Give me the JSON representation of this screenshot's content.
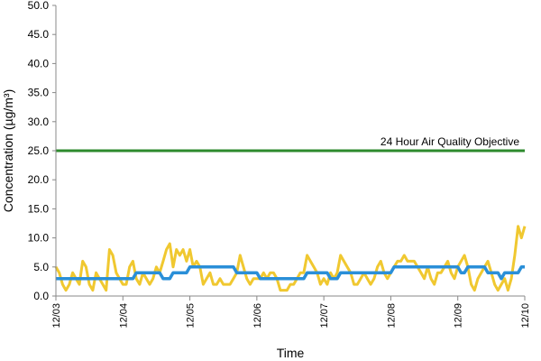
{
  "chart_data": {
    "type": "line",
    "xlabel": "Time",
    "ylabel": "Concentration (µg/m³)",
    "ylim": [
      0,
      50
    ],
    "yticks": [
      "0.0",
      "5.0",
      "10.0",
      "15.0",
      "20.0",
      "25.0",
      "30.0",
      "35.0",
      "40.0",
      "45.0",
      "50.0"
    ],
    "xticks": [
      "12/03",
      "12/04",
      "12/05",
      "12/06",
      "12/07",
      "12/08",
      "12/09",
      "12/10"
    ],
    "xlim_days": [
      0,
      7
    ],
    "grid": false,
    "annotation": "24 Hour Air Quality Objective",
    "series": [
      {
        "color": "#f0c830",
        "points": [
          [
            0.0,
            5
          ],
          [
            0.05,
            4
          ],
          [
            0.1,
            2
          ],
          [
            0.15,
            1
          ],
          [
            0.2,
            2
          ],
          [
            0.25,
            4
          ],
          [
            0.3,
            3
          ],
          [
            0.35,
            2
          ],
          [
            0.4,
            6
          ],
          [
            0.45,
            5
          ],
          [
            0.5,
            2
          ],
          [
            0.55,
            1
          ],
          [
            0.6,
            4
          ],
          [
            0.65,
            3
          ],
          [
            0.7,
            2
          ],
          [
            0.75,
            1
          ],
          [
            0.8,
            8
          ],
          [
            0.85,
            7
          ],
          [
            0.9,
            4
          ],
          [
            0.95,
            3
          ],
          [
            1.0,
            2
          ],
          [
            1.05,
            2
          ],
          [
            1.1,
            5
          ],
          [
            1.15,
            6
          ],
          [
            1.2,
            3
          ],
          [
            1.25,
            2
          ],
          [
            1.3,
            4
          ],
          [
            1.35,
            3
          ],
          [
            1.4,
            2
          ],
          [
            1.45,
            3
          ],
          [
            1.5,
            5
          ],
          [
            1.55,
            4
          ],
          [
            1.6,
            6
          ],
          [
            1.65,
            8
          ],
          [
            1.7,
            9
          ],
          [
            1.75,
            5
          ],
          [
            1.8,
            8
          ],
          [
            1.85,
            7
          ],
          [
            1.9,
            8
          ],
          [
            1.95,
            6
          ],
          [
            2.0,
            8
          ],
          [
            2.05,
            5
          ],
          [
            2.1,
            6
          ],
          [
            2.15,
            5
          ],
          [
            2.2,
            2
          ],
          [
            2.25,
            3
          ],
          [
            2.3,
            4
          ],
          [
            2.35,
            2
          ],
          [
            2.4,
            2
          ],
          [
            2.45,
            3
          ],
          [
            2.5,
            2
          ],
          [
            2.55,
            2
          ],
          [
            2.6,
            2
          ],
          [
            2.65,
            3
          ],
          [
            2.7,
            4
          ],
          [
            2.75,
            7
          ],
          [
            2.8,
            5
          ],
          [
            2.85,
            3
          ],
          [
            2.9,
            2
          ],
          [
            2.95,
            3
          ],
          [
            3.0,
            3
          ],
          [
            3.05,
            3
          ],
          [
            3.1,
            4
          ],
          [
            3.15,
            3
          ],
          [
            3.2,
            4
          ],
          [
            3.25,
            4
          ],
          [
            3.3,
            3
          ],
          [
            3.35,
            1
          ],
          [
            3.4,
            1
          ],
          [
            3.45,
            1
          ],
          [
            3.5,
            2
          ],
          [
            3.55,
            2
          ],
          [
            3.6,
            3
          ],
          [
            3.65,
            4
          ],
          [
            3.7,
            4
          ],
          [
            3.75,
            7
          ],
          [
            3.8,
            6
          ],
          [
            3.85,
            5
          ],
          [
            3.9,
            4
          ],
          [
            3.95,
            2
          ],
          [
            4.0,
            3
          ],
          [
            4.05,
            2
          ],
          [
            4.1,
            4
          ],
          [
            4.15,
            3
          ],
          [
            4.2,
            4
          ],
          [
            4.25,
            7
          ],
          [
            4.3,
            6
          ],
          [
            4.35,
            5
          ],
          [
            4.4,
            4
          ],
          [
            4.45,
            2
          ],
          [
            4.5,
            2
          ],
          [
            4.55,
            3
          ],
          [
            4.6,
            4
          ],
          [
            4.65,
            3
          ],
          [
            4.7,
            2
          ],
          [
            4.75,
            3
          ],
          [
            4.8,
            5
          ],
          [
            4.85,
            6
          ],
          [
            4.9,
            4
          ],
          [
            4.95,
            3
          ],
          [
            5.0,
            4
          ],
          [
            5.05,
            5
          ],
          [
            5.1,
            6
          ],
          [
            5.15,
            6
          ],
          [
            5.2,
            7
          ],
          [
            5.25,
            6
          ],
          [
            5.3,
            6
          ],
          [
            5.35,
            6
          ],
          [
            5.4,
            5
          ],
          [
            5.45,
            4
          ],
          [
            5.5,
            3
          ],
          [
            5.55,
            5
          ],
          [
            5.6,
            3
          ],
          [
            5.65,
            2
          ],
          [
            5.7,
            4
          ],
          [
            5.75,
            4
          ],
          [
            5.8,
            5
          ],
          [
            5.85,
            6
          ],
          [
            5.9,
            4
          ],
          [
            5.95,
            3
          ],
          [
            6.0,
            5
          ],
          [
            6.05,
            6
          ],
          [
            6.1,
            7
          ],
          [
            6.15,
            5
          ],
          [
            6.2,
            2
          ],
          [
            6.25,
            1
          ],
          [
            6.3,
            3
          ],
          [
            6.35,
            4
          ],
          [
            6.4,
            5
          ],
          [
            6.45,
            6
          ],
          [
            6.5,
            4
          ],
          [
            6.55,
            2
          ],
          [
            6.6,
            1
          ],
          [
            6.65,
            2
          ],
          [
            6.7,
            3
          ],
          [
            6.75,
            1
          ],
          [
            6.8,
            3
          ],
          [
            6.85,
            7
          ],
          [
            6.9,
            12
          ],
          [
            6.95,
            10
          ],
          [
            7.0,
            12
          ]
        ]
      },
      {
        "color": "#2a8fd8",
        "points": [
          [
            0.0,
            3
          ],
          [
            0.55,
            3
          ],
          [
            0.6,
            3
          ],
          [
            1.15,
            3
          ],
          [
            1.2,
            4
          ],
          [
            1.55,
            4
          ],
          [
            1.6,
            3
          ],
          [
            1.7,
            3
          ],
          [
            1.75,
            4
          ],
          [
            1.95,
            4
          ],
          [
            2.0,
            5
          ],
          [
            2.65,
            5
          ],
          [
            2.7,
            4
          ],
          [
            3.0,
            4
          ],
          [
            3.05,
            3
          ],
          [
            3.7,
            3
          ],
          [
            3.75,
            4
          ],
          [
            4.05,
            4
          ],
          [
            4.1,
            3
          ],
          [
            4.2,
            3
          ],
          [
            4.25,
            4
          ],
          [
            5.0,
            4
          ],
          [
            5.05,
            5
          ],
          [
            6.0,
            5
          ],
          [
            6.05,
            4
          ],
          [
            6.1,
            4
          ],
          [
            6.15,
            5
          ],
          [
            6.4,
            5
          ],
          [
            6.45,
            4
          ],
          [
            6.6,
            4
          ],
          [
            6.65,
            3
          ],
          [
            6.7,
            4
          ],
          [
            6.9,
            4
          ],
          [
            6.95,
            5
          ],
          [
            7.0,
            5
          ]
        ]
      },
      {
        "color": "#2d8a2d",
        "points": [
          [
            0,
            25
          ],
          [
            7,
            25
          ]
        ]
      }
    ]
  }
}
